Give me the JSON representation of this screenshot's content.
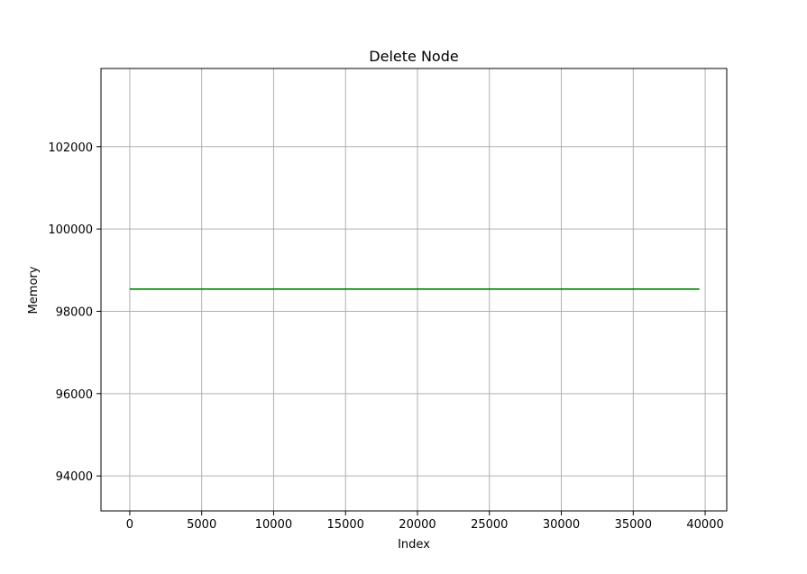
{
  "chart_data": {
    "type": "line",
    "title": "Delete Node",
    "xlabel": "Index",
    "ylabel": "Memory",
    "xlim": [
      -2000,
      41500
    ],
    "ylim": [
      93150,
      103900
    ],
    "x_ticks": [
      0,
      5000,
      10000,
      15000,
      20000,
      25000,
      30000,
      35000,
      40000
    ],
    "y_ticks": [
      94000,
      96000,
      98000,
      100000,
      102000
    ],
    "grid": true,
    "series": [
      {
        "color": "#008000",
        "x": [
          0,
          39600
        ],
        "y": [
          98540,
          98540
        ]
      }
    ]
  }
}
